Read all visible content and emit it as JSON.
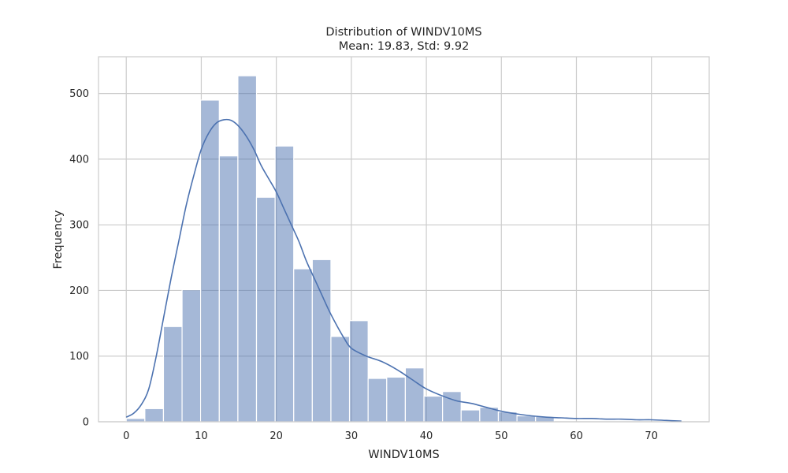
{
  "chart_data": {
    "type": "bar",
    "title": "Distribution of WINDV10MS",
    "subtitle": "Mean: 19.83, Std: 9.92",
    "xlabel": "WINDV10MS",
    "ylabel": "Frequency",
    "xlim": [
      -3.7,
      77.7
    ],
    "ylim": [
      0,
      556
    ],
    "xticks": [
      0,
      10,
      20,
      30,
      40,
      50,
      60,
      70
    ],
    "yticks": [
      0,
      100,
      200,
      300,
      400,
      500
    ],
    "grid": true,
    "bin_width": 2.48,
    "bin_start": 0,
    "counts": [
      5,
      20,
      145,
      201,
      490,
      405,
      527,
      342,
      420,
      233,
      247,
      130,
      154,
      66,
      68,
      82,
      39,
      46,
      18,
      22,
      15,
      9,
      8,
      0,
      0,
      0,
      0,
      0,
      0,
      0
    ],
    "kde": {
      "x": [
        0,
        1,
        2,
        3,
        4,
        5,
        6,
        7,
        8,
        9,
        10,
        11,
        12,
        13,
        14,
        15,
        16,
        17,
        18,
        19,
        20,
        21,
        22,
        23,
        24,
        25,
        26,
        27,
        28,
        29,
        30,
        32,
        34,
        36,
        38,
        40,
        42,
        44,
        46,
        48,
        50,
        52,
        54,
        56,
        58,
        60,
        62,
        64,
        66,
        68,
        70,
        72,
        74
      ],
      "y": [
        7,
        13,
        26,
        50,
        100,
        160,
        220,
        275,
        330,
        375,
        415,
        440,
        455,
        460,
        459,
        450,
        435,
        415,
        390,
        370,
        350,
        325,
        300,
        275,
        245,
        220,
        195,
        170,
        148,
        128,
        112,
        100,
        92,
        80,
        65,
        50,
        40,
        32,
        28,
        22,
        16,
        12,
        9,
        7,
        6,
        5,
        5,
        4,
        4,
        3,
        3,
        2,
        1
      ]
    },
    "bar_color": "#4c72b0",
    "line_color": "#4c72b0"
  }
}
